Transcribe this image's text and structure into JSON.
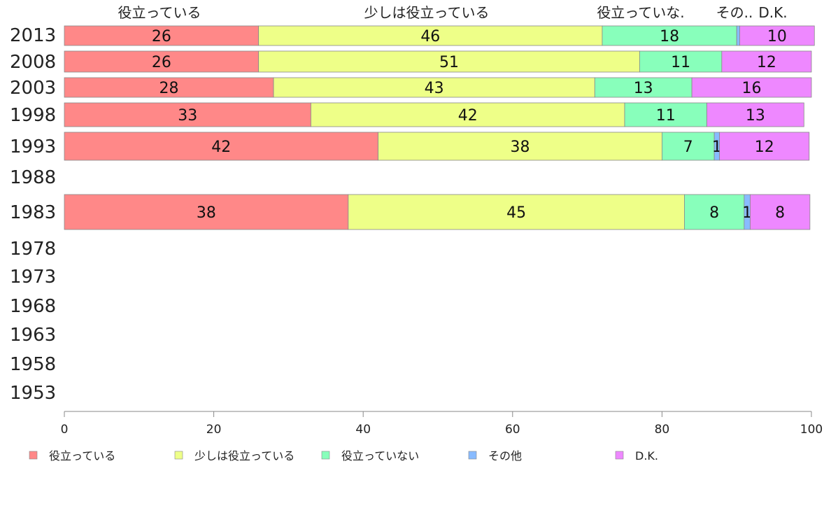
{
  "chart_data": {
    "type": "bar",
    "orientation": "horizontal",
    "stacked": true,
    "categories": [
      "2013",
      "2008",
      "2003",
      "1998",
      "1993",
      "1988",
      "1983",
      "1978",
      "1973",
      "1968",
      "1963",
      "1958",
      "1953"
    ],
    "series": [
      {
        "name": "役立っている",
        "color": "#ff8888",
        "values": [
          26,
          26,
          28,
          33,
          42,
          null,
          38,
          null,
          null,
          null,
          null,
          null,
          null
        ]
      },
      {
        "name": "少しは役立っている",
        "color": "#eeff88",
        "values": [
          46,
          51,
          43,
          42,
          38,
          null,
          45,
          null,
          null,
          null,
          null,
          null,
          null
        ]
      },
      {
        "name": "役立っていない",
        "color": "#88ffbb",
        "values": [
          18,
          11,
          13,
          11,
          7,
          null,
          8,
          null,
          null,
          null,
          null,
          null,
          null
        ]
      },
      {
        "name": "その他",
        "color": "#88bbff",
        "values": [
          0.4,
          0,
          0,
          0,
          0.7,
          null,
          0.8,
          null,
          null,
          null,
          null,
          null,
          null
        ]
      },
      {
        "name": "D.K.",
        "color": "#ee88ff",
        "values": [
          10,
          12,
          16,
          13,
          12,
          null,
          8,
          null,
          null,
          null,
          null,
          null,
          null
        ]
      }
    ],
    "top_labels": [
      "役立っている",
      "少しは役立っている",
      "役立っていな.",
      "その..",
      "D.K."
    ],
    "xticks": [
      "0",
      "20",
      "40",
      "60",
      "80",
      "100"
    ],
    "xlim": [
      0,
      100
    ],
    "grid": false,
    "legend_position": "bottom"
  }
}
